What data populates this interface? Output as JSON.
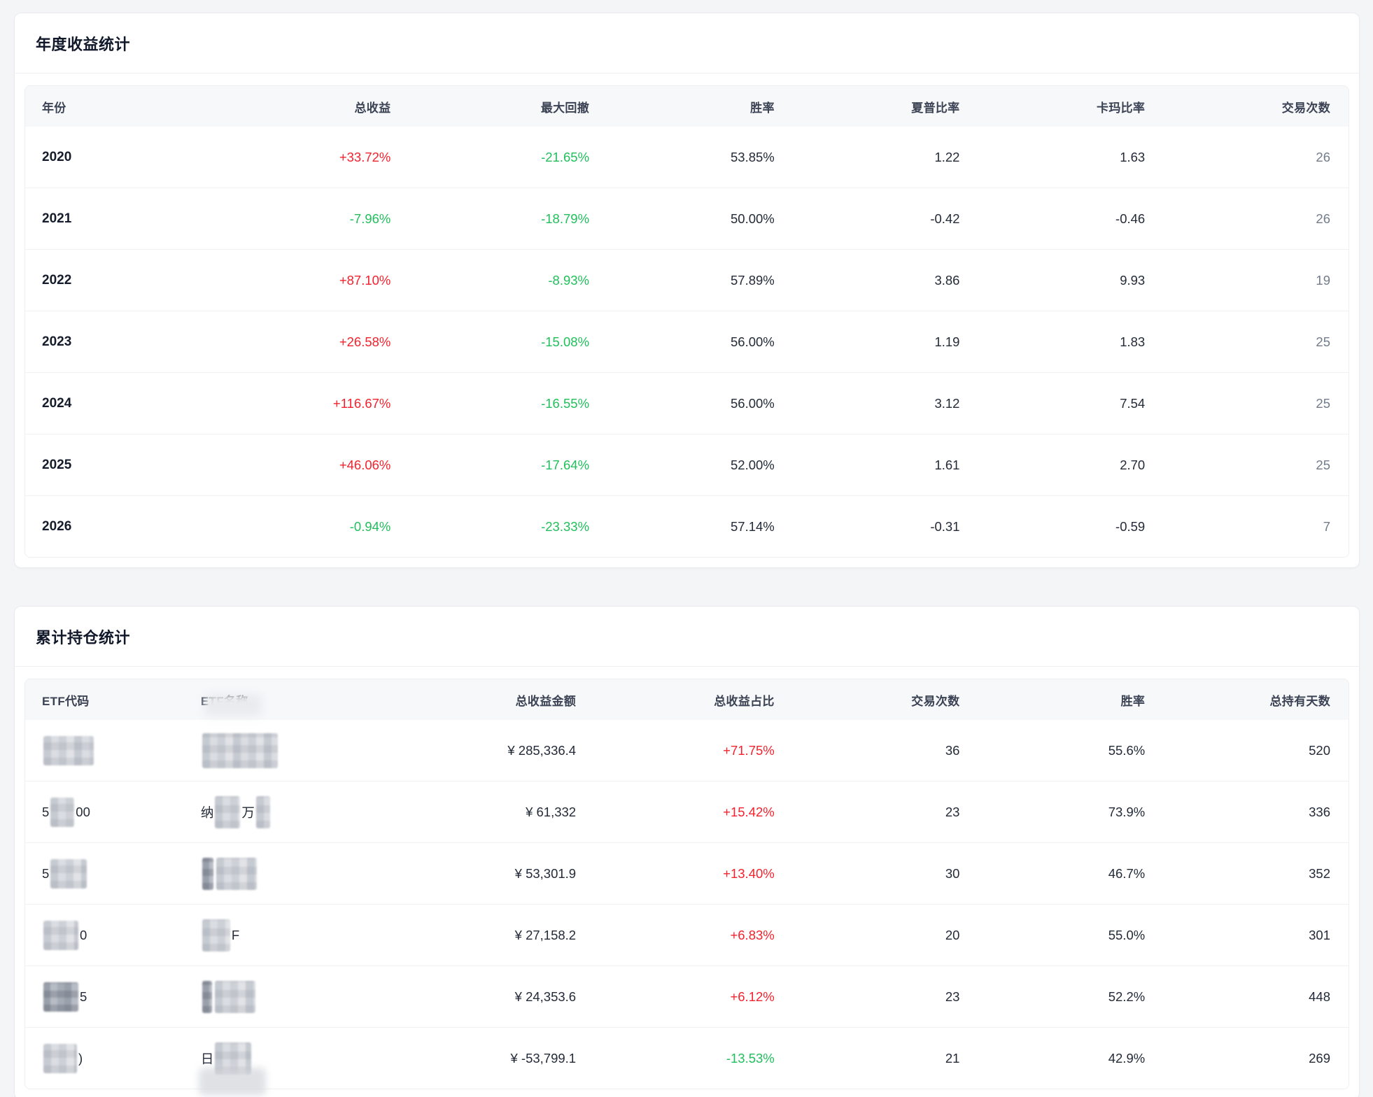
{
  "colors": {
    "positive_red": "#f5222d",
    "negative_green": "#20bf5b"
  },
  "annual_card": {
    "title": "年度收益统计",
    "columns": [
      "年份",
      "总收益",
      "最大回撤",
      "胜率",
      "夏普比率",
      "卡玛比率",
      "交易次数"
    ],
    "rows": [
      {
        "year": "2020",
        "total_return": "+33.72%",
        "total_return_color": "red",
        "max_drawdown": "-21.65%",
        "max_drawdown_color": "green",
        "win_rate": "53.85%",
        "sharpe": "1.22",
        "calmar": "1.63",
        "trades": "26"
      },
      {
        "year": "2021",
        "total_return": "-7.96%",
        "total_return_color": "green",
        "max_drawdown": "-18.79%",
        "max_drawdown_color": "green",
        "win_rate": "50.00%",
        "sharpe": "-0.42",
        "calmar": "-0.46",
        "trades": "26"
      },
      {
        "year": "2022",
        "total_return": "+87.10%",
        "total_return_color": "red",
        "max_drawdown": "-8.93%",
        "max_drawdown_color": "green",
        "win_rate": "57.89%",
        "sharpe": "3.86",
        "calmar": "9.93",
        "trades": "19"
      },
      {
        "year": "2023",
        "total_return": "+26.58%",
        "total_return_color": "red",
        "max_drawdown": "-15.08%",
        "max_drawdown_color": "green",
        "win_rate": "56.00%",
        "sharpe": "1.19",
        "calmar": "1.83",
        "trades": "25"
      },
      {
        "year": "2024",
        "total_return": "+116.67%",
        "total_return_color": "red",
        "max_drawdown": "-16.55%",
        "max_drawdown_color": "green",
        "win_rate": "56.00%",
        "sharpe": "3.12",
        "calmar": "7.54",
        "trades": "25"
      },
      {
        "year": "2025",
        "total_return": "+46.06%",
        "total_return_color": "red",
        "max_drawdown": "-17.64%",
        "max_drawdown_color": "green",
        "win_rate": "52.00%",
        "sharpe": "1.61",
        "calmar": "2.70",
        "trades": "25"
      },
      {
        "year": "2026",
        "total_return": "-0.94%",
        "total_return_color": "green",
        "max_drawdown": "-23.33%",
        "max_drawdown_color": "green",
        "win_rate": "57.14%",
        "sharpe": "-0.31",
        "calmar": "-0.59",
        "trades": "7"
      }
    ]
  },
  "holdings_card": {
    "title": "累计持仓统计",
    "columns": [
      "ETF代码",
      "ETF名称",
      "总收益金额",
      "总收益占比",
      "交易次数",
      "胜率",
      "总持有天数"
    ],
    "rows": [
      {
        "code_parts": [
          {
            "mosaic": [
              72,
              42
            ]
          }
        ],
        "name_parts": [
          {
            "mosaic": [
              108,
              50
            ]
          }
        ],
        "amount": "¥ 285,336.4",
        "pct": "+71.75%",
        "pct_color": "red",
        "trades": "36",
        "win_rate": "55.6%",
        "days": "520"
      },
      {
        "code_parts": [
          {
            "text": "5"
          },
          {
            "mosaic": [
              34,
              42
            ]
          },
          {
            "text": "00"
          }
        ],
        "name_parts": [
          {
            "text": "纳"
          },
          {
            "mosaic": [
              36,
              46
            ]
          },
          {
            "text": "万"
          },
          {
            "mosaic": [
              20,
              46
            ]
          }
        ],
        "amount": "¥ 61,332",
        "pct": "+15.42%",
        "pct_color": "red",
        "trades": "23",
        "win_rate": "73.9%",
        "days": "336"
      },
      {
        "code_parts": [
          {
            "text": "5"
          },
          {
            "mosaic": [
              52,
              42
            ]
          }
        ],
        "name_parts": [
          {
            "mosaic": [
              16,
              46,
              "dark"
            ]
          },
          {
            "mosaic": [
              58,
              46
            ]
          }
        ],
        "amount": "¥ 53,301.9",
        "pct": "+13.40%",
        "pct_color": "red",
        "trades": "30",
        "win_rate": "46.7%",
        "days": "352"
      },
      {
        "code_parts": [
          {
            "mosaic": [
              50,
              42
            ]
          },
          {
            "text": "0"
          }
        ],
        "name_parts": [
          {
            "mosaic": [
              40,
              46
            ]
          },
          {
            "text": "F"
          }
        ],
        "amount": "¥ 27,158.2",
        "pct": "+6.83%",
        "pct_color": "red",
        "trades": "20",
        "win_rate": "55.0%",
        "days": "301"
      },
      {
        "code_parts": [
          {
            "mosaic": [
              50,
              42,
              "dark"
            ]
          },
          {
            "text": "5"
          }
        ],
        "name_parts": [
          {
            "mosaic": [
              14,
              46,
              "dark"
            ]
          },
          {
            "mosaic": [
              58,
              46
            ]
          }
        ],
        "amount": "¥ 24,353.6",
        "pct": "+6.12%",
        "pct_color": "red",
        "trades": "23",
        "win_rate": "52.2%",
        "days": "448"
      },
      {
        "code_parts": [
          {
            "mosaic": [
              48,
              42
            ]
          },
          {
            "text": ")"
          }
        ],
        "name_parts": [
          {
            "text": "日"
          },
          {
            "mosaic": [
              52,
              46
            ]
          }
        ],
        "amount": "¥ -53,799.1",
        "pct": "-13.53%",
        "pct_color": "green",
        "trades": "21",
        "win_rate": "42.9%",
        "days": "269"
      }
    ]
  }
}
